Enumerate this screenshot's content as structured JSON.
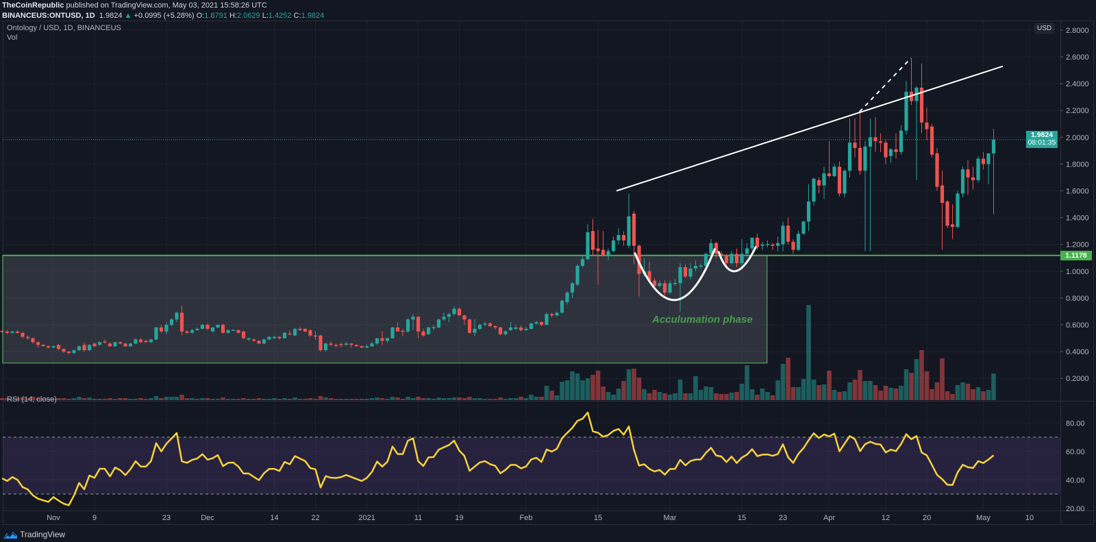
{
  "header": {
    "publisher": "TheCoinRepublic",
    "published_text": " published on TradingView.com, May 03, 2021 15:58:26 UTC",
    "symbol": "BINANCEUS:ONTUSD, 1D",
    "last": "1.9824",
    "change": "+0.0995 (+5.28%)",
    "o_label": "O:",
    "o": "1.8791",
    "h_label": "H:",
    "h": "2.0629",
    "l_label": "L:",
    "l": "1.4252",
    "c_label": "C:",
    "c": "1.9824"
  },
  "legend": {
    "title": "Ontology / USD, 1D, BINANCEUS",
    "vol": "Vol",
    "rsi": "RSI (14, close)"
  },
  "price_axis": {
    "currency": "USD",
    "last_price": "1.9824",
    "countdown": "08:01:35",
    "level_label": "1.1178"
  },
  "annotation_text": "Acculumation phase",
  "footer": {
    "brand": "TradingView"
  },
  "colors": {
    "up": "#26a69a",
    "down": "#ef5350",
    "rsi": "#f7d23a",
    "level": "#4caf50",
    "bg": "#131722"
  },
  "chart_data": {
    "type": "candlestick",
    "title": "Ontology / USD, 1D, BINANCEUS",
    "x_unit": "days relative to Nov 1 2020",
    "first_candle_day": -10,
    "time_ticks": [
      {
        "day": 0,
        "label": "Nov"
      },
      {
        "day": 8,
        "label": "9"
      },
      {
        "day": 22,
        "label": "23"
      },
      {
        "day": 30,
        "label": "Dec"
      },
      {
        "day": 43,
        "label": "14"
      },
      {
        "day": 51,
        "label": "22"
      },
      {
        "day": 61,
        "label": "2021"
      },
      {
        "day": 71,
        "label": "11"
      },
      {
        "day": 79,
        "label": "19"
      },
      {
        "day": 92,
        "label": "Feb"
      },
      {
        "day": 106,
        "label": "15"
      },
      {
        "day": 120,
        "label": "Mar"
      },
      {
        "day": 134,
        "label": "15"
      },
      {
        "day": 142,
        "label": "23"
      },
      {
        "day": 151,
        "label": "Apr"
      },
      {
        "day": 162,
        "label": "12"
      },
      {
        "day": 170,
        "label": "20"
      },
      {
        "day": 181,
        "label": "May"
      },
      {
        "day": 190,
        "label": "10"
      }
    ],
    "price_ticks": [
      "0.2000",
      "0.4000",
      "0.6000",
      "0.8000",
      "1.0000",
      "1.2000",
      "1.4000",
      "1.6000",
      "1.8000",
      "2.0000",
      "2.2000",
      "2.4000",
      "2.6000",
      "2.8000"
    ],
    "rsi_ticks": [
      "20.00",
      "40.00",
      "60.00",
      "80.00"
    ],
    "ohlc": [
      [
        0.555,
        0.56,
        0.54,
        0.55
      ],
      [
        0.55,
        0.56,
        0.53,
        0.54
      ],
      [
        0.54,
        0.555,
        0.535,
        0.55
      ],
      [
        0.55,
        0.56,
        0.535,
        0.54
      ],
      [
        0.54,
        0.545,
        0.5,
        0.51
      ],
      [
        0.51,
        0.52,
        0.49,
        0.5
      ],
      [
        0.5,
        0.505,
        0.46,
        0.47
      ],
      [
        0.47,
        0.475,
        0.43,
        0.45
      ],
      [
        0.45,
        0.455,
        0.44,
        0.44
      ],
      [
        0.44,
        0.445,
        0.425,
        0.43
      ],
      [
        0.43,
        0.445,
        0.425,
        0.44
      ],
      [
        0.45,
        0.455,
        0.41,
        0.42
      ],
      [
        0.42,
        0.425,
        0.39,
        0.4
      ],
      [
        0.4,
        0.405,
        0.38,
        0.39
      ],
      [
        0.39,
        0.415,
        0.38,
        0.41
      ],
      [
        0.41,
        0.445,
        0.405,
        0.44
      ],
      [
        0.45,
        0.47,
        0.4,
        0.41
      ],
      [
        0.41,
        0.455,
        0.405,
        0.45
      ],
      [
        0.46,
        0.465,
        0.435,
        0.44
      ],
      [
        0.45,
        0.475,
        0.445,
        0.47
      ],
      [
        0.475,
        0.49,
        0.46,
        0.47
      ],
      [
        0.46,
        0.47,
        0.435,
        0.44
      ],
      [
        0.44,
        0.475,
        0.435,
        0.47
      ],
      [
        0.47,
        0.475,
        0.455,
        0.46
      ],
      [
        0.46,
        0.465,
        0.435,
        0.44
      ],
      [
        0.44,
        0.465,
        0.435,
        0.46
      ],
      [
        0.46,
        0.5,
        0.455,
        0.49
      ],
      [
        0.49,
        0.5,
        0.465,
        0.47
      ],
      [
        0.48,
        0.49,
        0.465,
        0.47
      ],
      [
        0.47,
        0.495,
        0.465,
        0.49
      ],
      [
        0.49,
        0.585,
        0.485,
        0.58
      ],
      [
        0.58,
        0.6,
        0.54,
        0.55
      ],
      [
        0.55,
        0.62,
        0.53,
        0.6
      ],
      [
        0.6,
        0.65,
        0.59,
        0.64
      ],
      [
        0.64,
        0.7,
        0.62,
        0.69
      ],
      [
        0.69,
        0.74,
        0.52,
        0.55
      ],
      [
        0.55,
        0.56,
        0.53,
        0.54
      ],
      [
        0.54,
        0.57,
        0.535,
        0.56
      ],
      [
        0.56,
        0.58,
        0.555,
        0.57
      ],
      [
        0.57,
        0.605,
        0.565,
        0.6
      ],
      [
        0.6,
        0.61,
        0.56,
        0.57
      ],
      [
        0.55,
        0.585,
        0.545,
        0.58
      ],
      [
        0.58,
        0.605,
        0.575,
        0.6
      ],
      [
        0.6,
        0.61,
        0.535,
        0.54
      ],
      [
        0.54,
        0.565,
        0.535,
        0.56
      ],
      [
        0.56,
        0.565,
        0.555,
        0.562
      ],
      [
        0.56,
        0.565,
        0.535,
        0.54
      ],
      [
        0.55,
        0.555,
        0.495,
        0.5
      ],
      [
        0.49,
        0.505,
        0.48,
        0.5
      ],
      [
        0.49,
        0.5,
        0.475,
        0.48
      ],
      [
        0.48,
        0.485,
        0.455,
        0.46
      ],
      [
        0.46,
        0.495,
        0.455,
        0.49
      ],
      [
        0.49,
        0.515,
        0.485,
        0.51
      ],
      [
        0.5,
        0.52,
        0.495,
        0.51
      ],
      [
        0.51,
        0.515,
        0.49,
        0.5
      ],
      [
        0.5,
        0.545,
        0.495,
        0.54
      ],
      [
        0.535,
        0.56,
        0.52,
        0.53
      ],
      [
        0.52,
        0.575,
        0.515,
        0.57
      ],
      [
        0.57,
        0.585,
        0.555,
        0.56
      ],
      [
        0.57,
        0.575,
        0.545,
        0.55
      ],
      [
        0.56,
        0.565,
        0.51,
        0.52
      ],
      [
        0.52,
        0.55,
        0.49,
        0.515
      ],
      [
        0.52,
        0.525,
        0.4,
        0.41
      ],
      [
        0.41,
        0.465,
        0.4,
        0.46
      ],
      [
        0.46,
        0.475,
        0.44,
        0.45
      ],
      [
        0.45,
        0.46,
        0.43,
        0.448
      ],
      [
        0.455,
        0.47,
        0.43,
        0.452
      ],
      [
        0.45,
        0.47,
        0.445,
        0.46
      ],
      [
        0.46,
        0.465,
        0.43,
        0.45
      ],
      [
        0.45,
        0.455,
        0.435,
        0.44
      ],
      [
        0.44,
        0.445,
        0.425,
        0.43
      ],
      [
        0.43,
        0.455,
        0.425,
        0.44
      ],
      [
        0.44,
        0.475,
        0.435,
        0.46
      ],
      [
        0.46,
        0.5,
        0.45,
        0.5
      ],
      [
        0.5,
        0.55,
        0.45,
        0.48
      ],
      [
        0.48,
        0.505,
        0.465,
        0.5
      ],
      [
        0.5,
        0.585,
        0.495,
        0.58
      ],
      [
        0.58,
        0.62,
        0.555,
        0.55
      ],
      [
        0.555,
        0.57,
        0.515,
        0.55
      ],
      [
        0.55,
        0.65,
        0.54,
        0.64
      ],
      [
        0.64,
        0.68,
        0.56,
        0.66
      ],
      [
        0.66,
        0.665,
        0.5,
        0.55
      ],
      [
        0.55,
        0.57,
        0.51,
        0.52
      ],
      [
        0.53,
        0.585,
        0.525,
        0.58
      ],
      [
        0.58,
        0.6,
        0.56,
        0.582
      ],
      [
        0.58,
        0.645,
        0.575,
        0.64
      ],
      [
        0.64,
        0.69,
        0.63,
        0.66
      ],
      [
        0.66,
        0.69,
        0.62,
        0.68
      ],
      [
        0.68,
        0.74,
        0.67,
        0.72
      ],
      [
        0.72,
        0.73,
        0.665,
        0.67
      ],
      [
        0.67,
        0.675,
        0.6,
        0.64
      ],
      [
        0.64,
        0.645,
        0.535,
        0.54
      ],
      [
        0.54,
        0.64,
        0.515,
        0.57
      ],
      [
        0.57,
        0.61,
        0.56,
        0.6
      ],
      [
        0.605,
        0.625,
        0.59,
        0.61
      ],
      [
        0.61,
        0.62,
        0.585,
        0.59
      ],
      [
        0.59,
        0.595,
        0.565,
        0.58
      ],
      [
        0.58,
        0.585,
        0.52,
        0.53
      ],
      [
        0.53,
        0.56,
        0.52,
        0.55
      ],
      [
        0.56,
        0.62,
        0.555,
        0.58
      ],
      [
        0.57,
        0.6,
        0.56,
        0.58
      ],
      [
        0.58,
        0.595,
        0.55,
        0.56
      ],
      [
        0.56,
        0.585,
        0.555,
        0.57
      ],
      [
        0.57,
        0.615,
        0.565,
        0.61
      ],
      [
        0.61,
        0.63,
        0.6,
        0.62
      ],
      [
        0.62,
        0.625,
        0.59,
        0.6
      ],
      [
        0.6,
        0.69,
        0.595,
        0.68
      ],
      [
        0.68,
        0.69,
        0.655,
        0.67
      ],
      [
        0.67,
        0.7,
        0.66,
        0.69
      ],
      [
        0.69,
        0.79,
        0.685,
        0.78
      ],
      [
        0.77,
        0.85,
        0.75,
        0.84
      ],
      [
        0.84,
        0.92,
        0.8,
        0.91
      ],
      [
        0.9,
        1.05,
        0.89,
        1.04
      ],
      [
        1.04,
        1.12,
        1.03,
        1.09
      ],
      [
        1.09,
        1.35,
        1.08,
        1.29
      ],
      [
        1.3,
        1.39,
        1.12,
        1.16
      ],
      [
        1.17,
        1.31,
        0.9,
        1.15
      ],
      [
        1.16,
        1.3,
        1.11,
        1.12
      ],
      [
        1.12,
        1.17,
        1.08,
        1.15
      ],
      [
        1.15,
        1.26,
        1.14,
        1.23
      ],
      [
        1.23,
        1.32,
        1.2,
        1.27
      ],
      [
        1.27,
        1.3,
        1.19,
        1.23
      ],
      [
        1.19,
        1.58,
        1.17,
        1.41
      ],
      [
        1.43,
        1.45,
        1.05,
        1.19
      ],
      [
        1.19,
        1.2,
        0.81,
        0.98
      ],
      [
        0.98,
        1.1,
        0.96,
        1.0
      ],
      [
        1.0,
        1.07,
        0.92,
        0.93
      ],
      [
        0.93,
        0.95,
        0.86,
        0.89
      ],
      [
        0.89,
        0.93,
        0.88,
        0.91
      ],
      [
        0.91,
        0.93,
        0.82,
        0.84
      ],
      [
        0.84,
        0.93,
        0.83,
        0.91
      ],
      [
        0.91,
        0.94,
        0.89,
        0.912
      ],
      [
        0.91,
        1.06,
        0.7,
        1.03
      ],
      [
        1.03,
        1.05,
        0.95,
        0.96
      ],
      [
        0.96,
        1.06,
        0.94,
        1.02
      ],
      [
        1.02,
        1.08,
        1.0,
        1.04
      ],
      [
        1.04,
        1.06,
        1.02,
        1.042
      ],
      [
        1.04,
        1.14,
        1.02,
        1.13
      ],
      [
        1.13,
        1.24,
        1.12,
        1.21
      ],
      [
        1.21,
        1.22,
        1.1,
        1.13
      ],
      [
        1.13,
        1.15,
        1.1,
        1.12
      ],
      [
        1.12,
        1.13,
        1.04,
        1.06
      ],
      [
        1.06,
        1.15,
        1.05,
        1.13
      ],
      [
        1.13,
        1.17,
        1.03,
        1.06
      ],
      [
        1.06,
        1.24,
        1.01,
        1.13
      ],
      [
        1.13,
        1.21,
        1.12,
        1.17
      ],
      [
        1.17,
        1.25,
        1.15,
        1.25
      ],
      [
        1.25,
        1.28,
        1.16,
        1.18
      ],
      [
        1.19,
        1.22,
        1.16,
        1.2
      ],
      [
        1.2,
        1.23,
        1.18,
        1.202
      ],
      [
        1.2,
        1.21,
        1.16,
        1.19
      ],
      [
        1.19,
        1.26,
        1.15,
        1.21
      ],
      [
        1.2,
        1.37,
        1.15,
        1.34
      ],
      [
        1.34,
        1.4,
        1.2,
        1.22
      ],
      [
        1.22,
        1.24,
        1.13,
        1.16
      ],
      [
        1.16,
        1.3,
        1.15,
        1.28
      ],
      [
        1.28,
        1.38,
        1.27,
        1.37
      ],
      [
        1.37,
        1.65,
        1.3,
        1.52
      ],
      [
        1.52,
        1.7,
        1.49,
        1.69
      ],
      [
        1.68,
        1.7,
        1.58,
        1.64
      ],
      [
        1.64,
        1.78,
        1.54,
        1.73
      ],
      [
        1.73,
        1.97,
        1.7,
        1.71
      ],
      [
        1.71,
        1.8,
        1.7,
        1.78
      ],
      [
        1.78,
        1.82,
        1.56,
        1.58
      ],
      [
        1.58,
        1.76,
        1.55,
        1.75
      ],
      [
        1.75,
        2.14,
        1.7,
        1.96
      ],
      [
        1.96,
        2.14,
        1.85,
        1.92
      ],
      [
        1.92,
        2.19,
        1.72,
        1.75
      ],
      [
        1.75,
        1.97,
        1.15,
        1.93
      ],
      [
        1.93,
        2.14,
        1.15,
        2.0
      ],
      [
        2.0,
        2.15,
        1.89,
        1.97
      ],
      [
        1.97,
        2.03,
        1.89,
        1.96
      ],
      [
        1.96,
        1.98,
        1.8,
        1.85
      ],
      [
        1.86,
        1.92,
        1.81,
        1.91
      ],
      [
        1.91,
        2.03,
        1.84,
        1.89
      ],
      [
        1.89,
        2.09,
        1.87,
        2.05
      ],
      [
        2.05,
        2.42,
        2.02,
        2.34
      ],
      [
        2.34,
        2.59,
        2.24,
        2.27
      ],
      [
        2.27,
        2.38,
        1.68,
        2.37
      ],
      [
        2.37,
        2.55,
        2.03,
        2.11
      ],
      [
        2.11,
        2.22,
        1.98,
        2.06
      ],
      [
        2.08,
        2.1,
        1.85,
        1.87
      ],
      [
        1.88,
        1.92,
        1.6,
        1.63
      ],
      [
        1.64,
        1.75,
        1.16,
        1.51
      ],
      [
        1.52,
        1.53,
        1.32,
        1.34
      ],
      [
        1.35,
        1.5,
        1.24,
        1.33
      ],
      [
        1.33,
        1.6,
        1.32,
        1.58
      ],
      [
        1.58,
        1.78,
        1.55,
        1.76
      ],
      [
        1.76,
        1.83,
        1.57,
        1.7
      ],
      [
        1.7,
        1.78,
        1.61,
        1.68
      ],
      [
        1.68,
        1.86,
        1.66,
        1.84
      ],
      [
        1.84,
        1.89,
        1.76,
        1.8
      ],
      [
        1.8,
        1.88,
        1.65,
        1.88
      ],
      [
        1.8791,
        2.0629,
        1.4252,
        1.9824
      ]
    ],
    "volume_relative": [
      3,
      3,
      2,
      3,
      4,
      3,
      5,
      3,
      2,
      2,
      2,
      3,
      3,
      2,
      3,
      5,
      3,
      4,
      2,
      2,
      2,
      3,
      2,
      3,
      3,
      2,
      2,
      3,
      2,
      3,
      6,
      3,
      5,
      5,
      5,
      8,
      3,
      3,
      2,
      3,
      3,
      2,
      2,
      4,
      2,
      2,
      2,
      3,
      2,
      2,
      3,
      2,
      2,
      3,
      2,
      3,
      2,
      4,
      2,
      2,
      3,
      2,
      6,
      4,
      3,
      2,
      2,
      2,
      2,
      2,
      2,
      2,
      3,
      4,
      3,
      2,
      5,
      4,
      2,
      5,
      3,
      5,
      3,
      3,
      2,
      4,
      3,
      3,
      4,
      4,
      3,
      5,
      3,
      3,
      2,
      2,
      2,
      4,
      2,
      3,
      3,
      5,
      3,
      8,
      5,
      5,
      21,
      14,
      7,
      27,
      29,
      42,
      39,
      29,
      32,
      37,
      43,
      20,
      12,
      8,
      17,
      28,
      45,
      46,
      33,
      16,
      10,
      15,
      12,
      10,
      8,
      10,
      30,
      10,
      10,
      35,
      15,
      20,
      19,
      10,
      9,
      9,
      11,
      12,
      24,
      51,
      16,
      8,
      17,
      12,
      7,
      29,
      53,
      62,
      19,
      19,
      31,
      139,
      30,
      22,
      23,
      43,
      15,
      12,
      13,
      26,
      30,
      44,
      28,
      28,
      22,
      14,
      21,
      18,
      17,
      21,
      45,
      40,
      60,
      73,
      42,
      16,
      26,
      61,
      13,
      9,
      22,
      26,
      24,
      16,
      19,
      13,
      15,
      39
    ],
    "rsi": {
      "period": 14,
      "source": "close",
      "start_value": 41,
      "upper_band": 70,
      "lower_band": 30,
      "ylim": [
        15,
        90
      ]
    },
    "price_ylim": [
      0.0,
      2.85
    ],
    "horizontal_level": 1.1178,
    "last_price": 1.9824,
    "accumulation_zone": {
      "day_start": -10.3,
      "day_end": 138.9,
      "price_low": 0.315,
      "price_high": 1.1178
    },
    "trendline": [
      {
        "day": 109.6,
        "price": 1.6
      },
      {
        "day": 184.8,
        "price": 2.53
      }
    ],
    "dashed_line": [
      {
        "day": 156.9,
        "price": 2.19
      },
      {
        "day": 166.9,
        "price": 2.59
      }
    ],
    "cups": [
      {
        "start": {
          "day": 113.2,
          "price": 1.133
        },
        "bottom": {
          "day": 121.0,
          "price": 0.785
        },
        "end": {
          "day": 128.7,
          "price": 1.164
        }
      },
      {
        "start": {
          "day": 129.5,
          "price": 1.143
        },
        "bottom": {
          "day": 132.7,
          "price": 1.0
        },
        "end": {
          "day": 136.7,
          "price": 1.18
        }
      }
    ]
  }
}
